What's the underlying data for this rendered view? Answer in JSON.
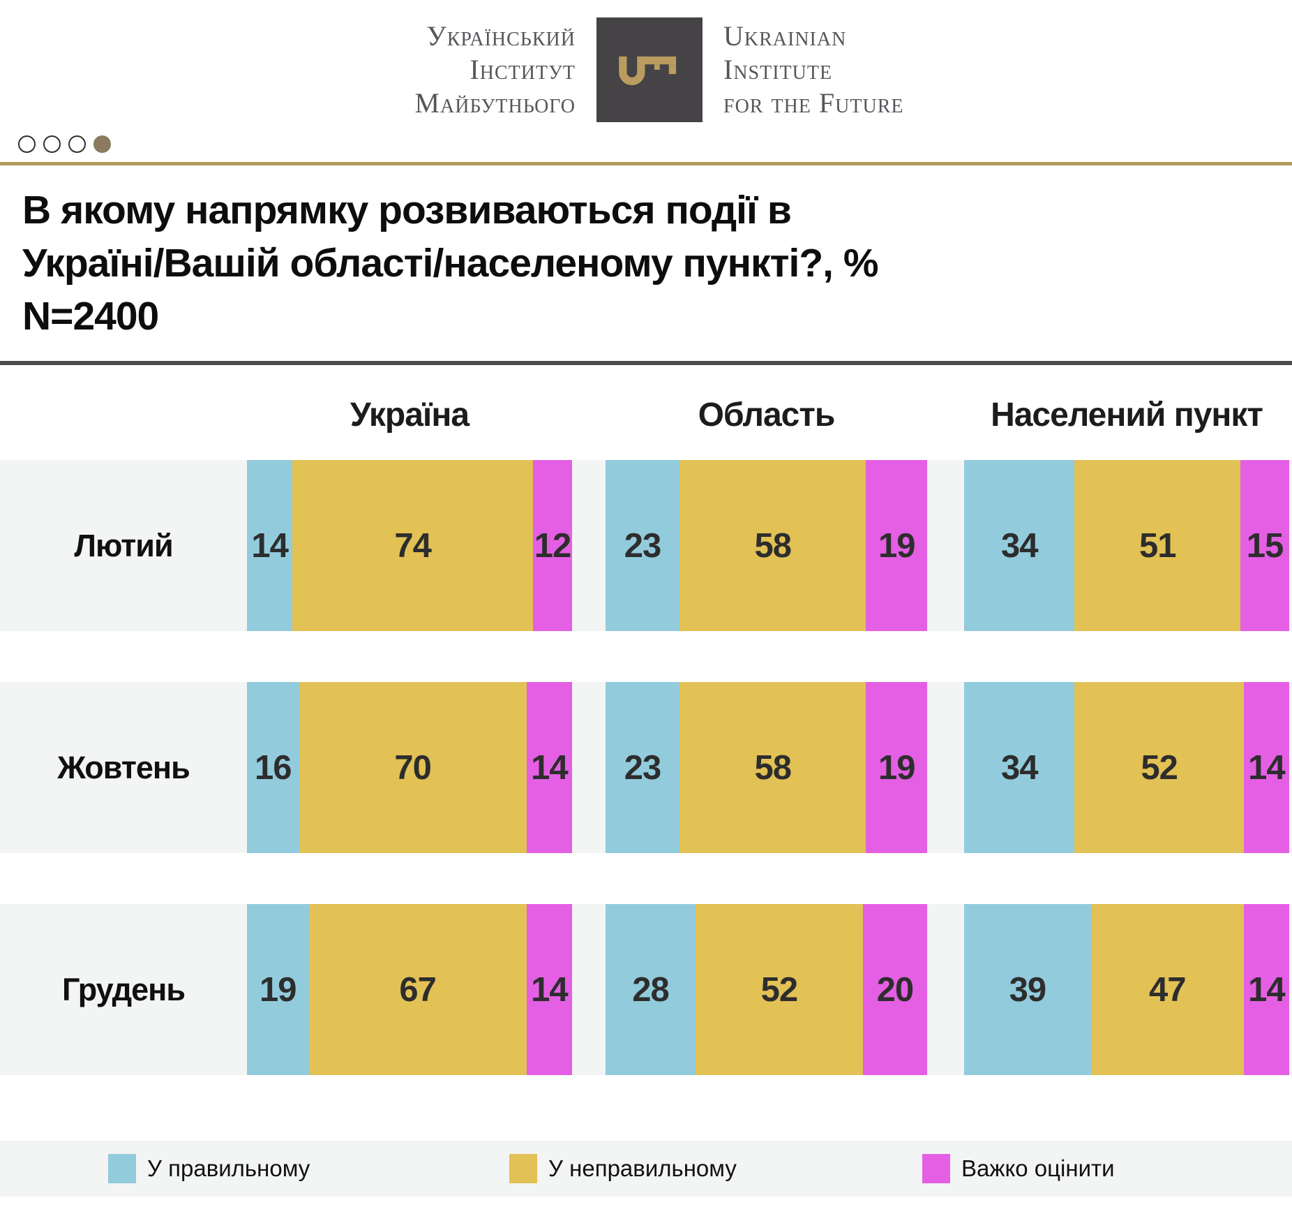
{
  "logo": {
    "uk_lines": [
      "Український",
      "Інститут",
      "Майбутнього"
    ],
    "en_lines": [
      "Ukrainian",
      "Institute",
      "for the Future"
    ],
    "square_color": "#454345",
    "key_color": "#bb9c60",
    "text_color": "#54565a"
  },
  "pagination": {
    "dot_count": 4,
    "active_index": 3,
    "active_color": "#8a7a60"
  },
  "accent_colors": {
    "gold_rule": "#b29a5c",
    "dark_rule": "#4c4c4c",
    "row_background": "#f3f4f4"
  },
  "title": {
    "line1": "В якому напрямку розвиваються події в",
    "line2": "Україні/Вашій області/населеному пункті?, %",
    "line3": "N=2400"
  },
  "chart_data": {
    "type": "bar",
    "variant": "horizontal-stacked",
    "unit": "%",
    "sample": "N=2400",
    "column_groups": [
      "Україна",
      "Область",
      "Населений пункт"
    ],
    "categories": [
      "Лютий",
      "Жовтень",
      "Грудень"
    ],
    "series_names": [
      "У правильному",
      "У неправильному",
      "Важко оцінити"
    ],
    "rows": [
      {
        "label": "Лютий",
        "bars": [
          [
            14,
            74,
            12
          ],
          [
            23,
            58,
            19
          ],
          [
            34,
            51,
            15
          ]
        ]
      },
      {
        "label": "Жовтень",
        "bars": [
          [
            16,
            70,
            14
          ],
          [
            23,
            58,
            19
          ],
          [
            34,
            52,
            14
          ]
        ]
      },
      {
        "label": "Грудень",
        "bars": [
          [
            19,
            67,
            14
          ],
          [
            28,
            52,
            20
          ],
          [
            39,
            47,
            14
          ]
        ]
      }
    ],
    "legend": [
      {
        "label": "У правильному",
        "color": "#92cbdc"
      },
      {
        "label": "У неправильному",
        "color": "#e2c155"
      },
      {
        "label": "Важко оцінити",
        "color": "#e45fe4"
      }
    ],
    "xlim": [
      0,
      100
    ],
    "grid": false,
    "legend_position": "bottom"
  }
}
